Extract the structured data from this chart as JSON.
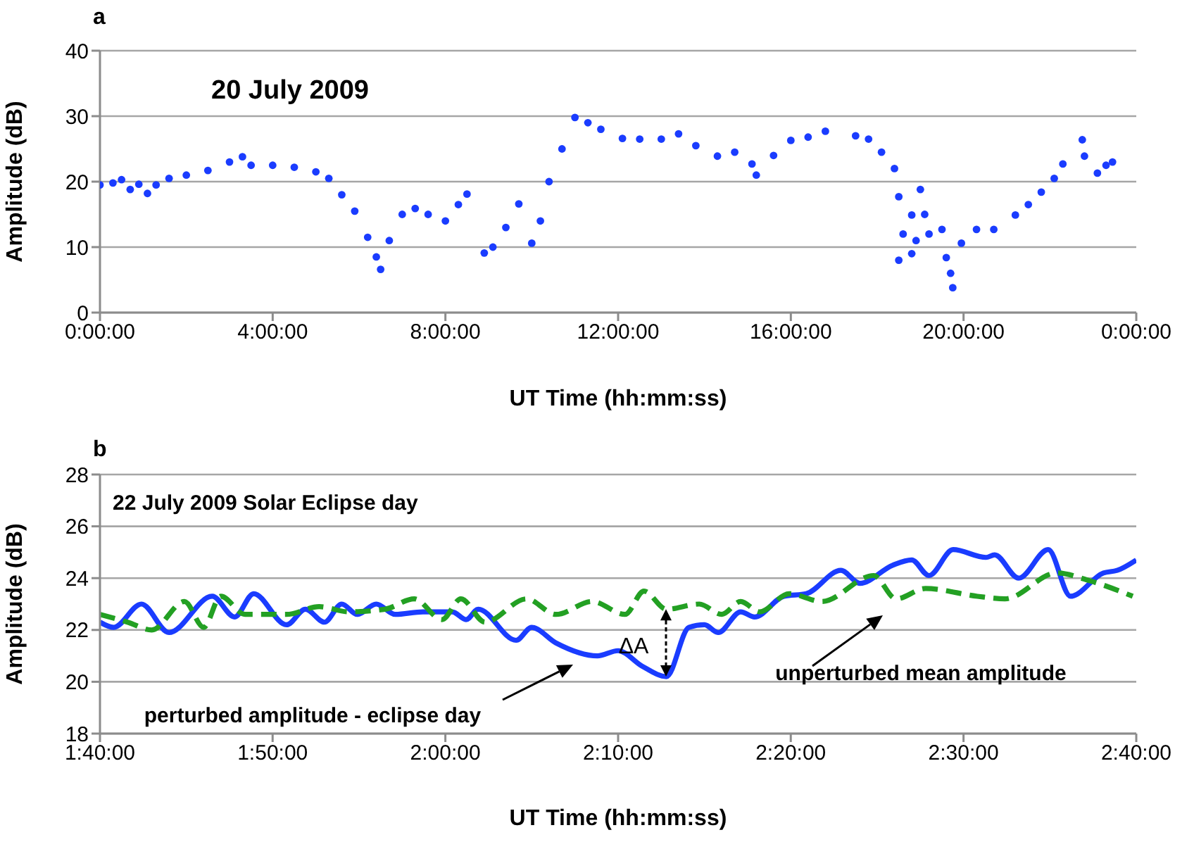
{
  "chart_data": [
    {
      "type": "scatter",
      "title": "a",
      "subtitle": "20 July 2009",
      "xlabel": "UT Time (hh:mm:ss)",
      "ylabel": "Amplitude (dB)",
      "marker": "circle",
      "grid": "y",
      "xlim": [
        "2009-07-20T00:00",
        "2009-07-21T00:00"
      ],
      "ylim": [
        0,
        40
      ],
      "yticks": [
        0,
        10,
        20,
        30,
        40
      ],
      "xticks": [
        {
          "value": "2009-07-20T00:00",
          "label": "0:00:00"
        },
        {
          "value": "2009-07-20T04:00",
          "label": "4:00:00"
        },
        {
          "value": "2009-07-20T08:00",
          "label": "8:00:00"
        },
        {
          "value": "2009-07-20T12:00",
          "label": "12:00:00"
        },
        {
          "value": "2009-07-20T16:00",
          "label": "16:00:00"
        },
        {
          "value": "2009-07-20T20:00",
          "label": "20:00:00"
        },
        {
          "value": "2009-07-21T00:00",
          "label": "0:00:00"
        }
      ],
      "x": [
        "2009-07-20T00:00",
        "2009-07-20T00:18",
        "2009-07-20T00:30",
        "2009-07-20T00:42",
        "2009-07-20T00:54",
        "2009-07-20T01:06",
        "2009-07-20T01:18",
        "2009-07-20T01:36",
        "2009-07-20T02:00",
        "2009-07-20T02:30",
        "2009-07-20T03:00",
        "2009-07-20T03:18",
        "2009-07-20T03:30",
        "2009-07-20T04:00",
        "2009-07-20T04:30",
        "2009-07-20T05:00",
        "2009-07-20T05:18",
        "2009-07-20T05:36",
        "2009-07-20T05:54",
        "2009-07-20T06:12",
        "2009-07-20T06:24",
        "2009-07-20T06:30",
        "2009-07-20T06:42",
        "2009-07-20T07:00",
        "2009-07-20T07:18",
        "2009-07-20T07:36",
        "2009-07-20T08:00",
        "2009-07-20T08:18",
        "2009-07-20T08:30",
        "2009-07-20T08:54",
        "2009-07-20T09:06",
        "2009-07-20T09:24",
        "2009-07-20T09:42",
        "2009-07-20T10:00",
        "2009-07-20T10:12",
        "2009-07-20T10:24",
        "2009-07-20T10:42",
        "2009-07-20T11:00",
        "2009-07-20T11:18",
        "2009-07-20T11:36",
        "2009-07-20T12:06",
        "2009-07-20T12:30",
        "2009-07-20T13:00",
        "2009-07-20T13:24",
        "2009-07-20T13:48",
        "2009-07-20T14:18",
        "2009-07-20T14:42",
        "2009-07-20T15:06",
        "2009-07-20T15:12",
        "2009-07-20T15:36",
        "2009-07-20T16:00",
        "2009-07-20T16:24",
        "2009-07-20T16:48",
        "2009-07-20T17:30",
        "2009-07-20T17:48",
        "2009-07-20T18:06",
        "2009-07-20T18:24",
        "2009-07-20T18:30",
        "2009-07-20T18:30",
        "2009-07-20T18:36",
        "2009-07-20T18:48",
        "2009-07-20T18:48",
        "2009-07-20T18:54",
        "2009-07-20T19:00",
        "2009-07-20T19:06",
        "2009-07-20T19:12",
        "2009-07-20T19:30",
        "2009-07-20T19:36",
        "2009-07-20T19:42",
        "2009-07-20T19:45",
        "2009-07-20T19:57",
        "2009-07-20T20:18",
        "2009-07-20T20:42",
        "2009-07-20T21:12",
        "2009-07-20T21:30",
        "2009-07-20T21:48",
        "2009-07-20T22:06",
        "2009-07-20T22:18",
        "2009-07-20T22:45",
        "2009-07-20T22:48",
        "2009-07-20T23:06",
        "2009-07-20T23:18",
        "2009-07-20T23:27"
      ],
      "series": [
        {
          "color": "#1a3cff",
          "values": [
            19.5,
            19.8,
            20.3,
            18.8,
            19.6,
            18.2,
            19.5,
            20.5,
            21,
            21.7,
            23,
            23.8,
            22.5,
            22.5,
            22.2,
            21.5,
            20.5,
            18,
            15.5,
            11.5,
            8.5,
            6.6,
            11,
            15,
            15.9,
            15,
            14,
            16.5,
            18.1,
            9.1,
            10,
            13,
            16.6,
            10.6,
            14,
            20,
            25,
            29.8,
            29,
            28,
            26.6,
            26.5,
            26.5,
            27.3,
            25.5,
            23.9,
            24.5,
            22.7,
            21,
            24,
            26.3,
            26.8,
            27.7,
            27,
            26.5,
            24.5,
            22,
            17.7,
            8,
            12,
            9,
            14.9,
            11,
            18.8,
            15,
            12,
            12.7,
            8.4,
            6,
            3.8,
            10.6,
            12.7,
            12.7,
            14.9,
            16.5,
            18.4,
            20.5,
            22.7,
            26.4,
            23.9,
            21.3,
            22.5,
            23
          ]
        }
      ]
    },
    {
      "type": "line",
      "title": "b",
      "subtitle": "22 July 2009 Solar Eclipse day",
      "xlabel": "UT Time (hh:mm:ss)",
      "ylabel": "Amplitude (dB)",
      "grid": "y",
      "xlim": [
        1.6667,
        2.6667
      ],
      "ylim": [
        18,
        28
      ],
      "yticks": [
        18,
        20,
        22,
        24,
        26,
        28
      ],
      "xticks": [
        {
          "value": 1.6667,
          "label": "1:40:00"
        },
        {
          "value": 1.8333,
          "label": "1:50:00"
        },
        {
          "value": 2,
          "label": "2:00:00"
        },
        {
          "value": 2.1667,
          "label": "2:10:00"
        },
        {
          "value": 2.3333,
          "label": "2:20:00"
        },
        {
          "value": 2.5,
          "label": "2:30:00"
        },
        {
          "value": 2.6667,
          "label": "2:40:00"
        }
      ],
      "annotations": [
        "perturbed amplitude - eclipse day",
        "unperturbed mean amplitude",
        "ΔA"
      ],
      "series": [
        {
          "color": "#1a3cff",
          "line_style": "solid",
          "x": [
            1.6667,
            1.68,
            1.7067,
            1.7333,
            1.775,
            1.7967,
            1.815,
            1.8467,
            1.865,
            1.8833,
            1.9,
            1.915,
            1.9333,
            1.9517,
            1.9783,
            2.0067,
            2.02,
            2.0317,
            2.0683,
            2.0833,
            2.1067,
            2.1467,
            2.1667,
            2.19,
            2.2133,
            2.235,
            2.25,
            2.2633,
            2.285,
            2.2983,
            2.3267,
            2.3483,
            2.3817,
            2.4,
            2.4317,
            2.45,
            2.4667,
            2.49,
            2.5217,
            2.53,
            2.5533,
            2.5817,
            2.6033,
            2.635,
            2.6483,
            2.6667
          ],
          "values": [
            22.3,
            22.1,
            23.0,
            21.9,
            23.3,
            22.5,
            23.4,
            22.2,
            22.8,
            22.3,
            23.0,
            22.6,
            23.0,
            22.6,
            22.7,
            22.7,
            22.4,
            22.8,
            21.6,
            22.1,
            21.5,
            21.0,
            21.2,
            20.6,
            20.2,
            22.1,
            22.2,
            21.9,
            22.7,
            22.5,
            23.3,
            23.4,
            24.3,
            23.8,
            24.5,
            24.7,
            24.1,
            25.1,
            24.8,
            24.9,
            24.0,
            25.1,
            23.3,
            24.2,
            24.3,
            24.7
          ]
        },
        {
          "color": "#23a023",
          "line_style": "dashed",
          "x": [
            1.6667,
            1.6933,
            1.7167,
            1.7483,
            1.7667,
            1.7833,
            1.8067,
            1.8467,
            1.8783,
            1.9067,
            1.9417,
            1.97,
            1.9967,
            2.015,
            2.0383,
            2.0783,
            2.1067,
            2.1417,
            2.1733,
            2.1917,
            2.2133,
            2.245,
            2.2667,
            2.285,
            2.3033,
            2.3317,
            2.3633,
            2.4133,
            2.435,
            2.4633,
            2.5133,
            2.54,
            2.59,
            2.6217,
            2.6633
          ],
          "values": [
            22.6,
            22.3,
            22.0,
            23.1,
            22.1,
            23.3,
            22.6,
            22.6,
            22.9,
            22.7,
            22.8,
            23.2,
            22.4,
            23.2,
            22.3,
            23.2,
            22.6,
            23.1,
            22.6,
            23.5,
            22.8,
            23.0,
            22.6,
            23.1,
            22.7,
            23.4,
            23.1,
            24.1,
            23.2,
            23.6,
            23.3,
            23.2,
            24.2,
            23.9,
            23.3
          ]
        }
      ]
    }
  ]
}
